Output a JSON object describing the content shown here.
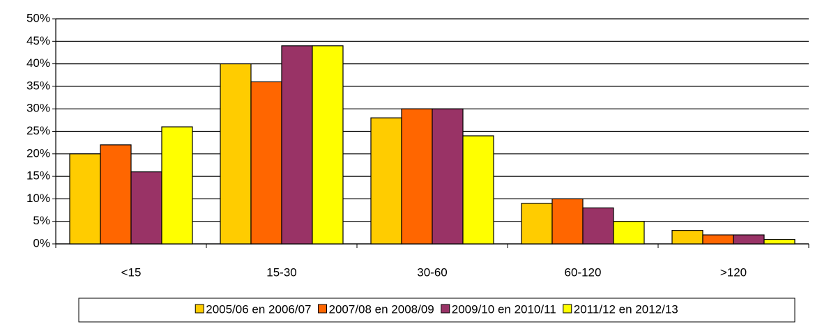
{
  "chart_data": {
    "type": "bar",
    "categories": [
      "<15",
      "15-30",
      "30-60",
      "60-120",
      ">120"
    ],
    "series": [
      {
        "name": "2005/06 en 2006/07",
        "color": "#ffcc00",
        "values": [
          20,
          40,
          28,
          9,
          3
        ]
      },
      {
        "name": "2007/08 en 2008/09",
        "color": "#ff6600",
        "values": [
          22,
          36,
          30,
          10,
          2
        ]
      },
      {
        "name": "2009/10 en 2010/11",
        "color": "#993366",
        "values": [
          16,
          44,
          30,
          8,
          2
        ]
      },
      {
        "name": "2011/12 en 2012/13",
        "color": "#ffff00",
        "values": [
          26,
          44,
          24,
          5,
          1
        ]
      }
    ],
    "ylim": [
      0,
      50
    ],
    "yticks": [
      {
        "value": 0,
        "label": "0%"
      },
      {
        "value": 5,
        "label": "5%"
      },
      {
        "value": 10,
        "label": "10%"
      },
      {
        "value": 15,
        "label": "15%"
      },
      {
        "value": 20,
        "label": "20%"
      },
      {
        "value": 25,
        "label": "25%"
      },
      {
        "value": 30,
        "label": "30%"
      },
      {
        "value": 35,
        "label": "35%"
      },
      {
        "value": 40,
        "label": "40%"
      },
      {
        "value": 45,
        "label": "45%"
      },
      {
        "value": 50,
        "label": "50%"
      }
    ],
    "grid": true,
    "legend": "bottom"
  }
}
